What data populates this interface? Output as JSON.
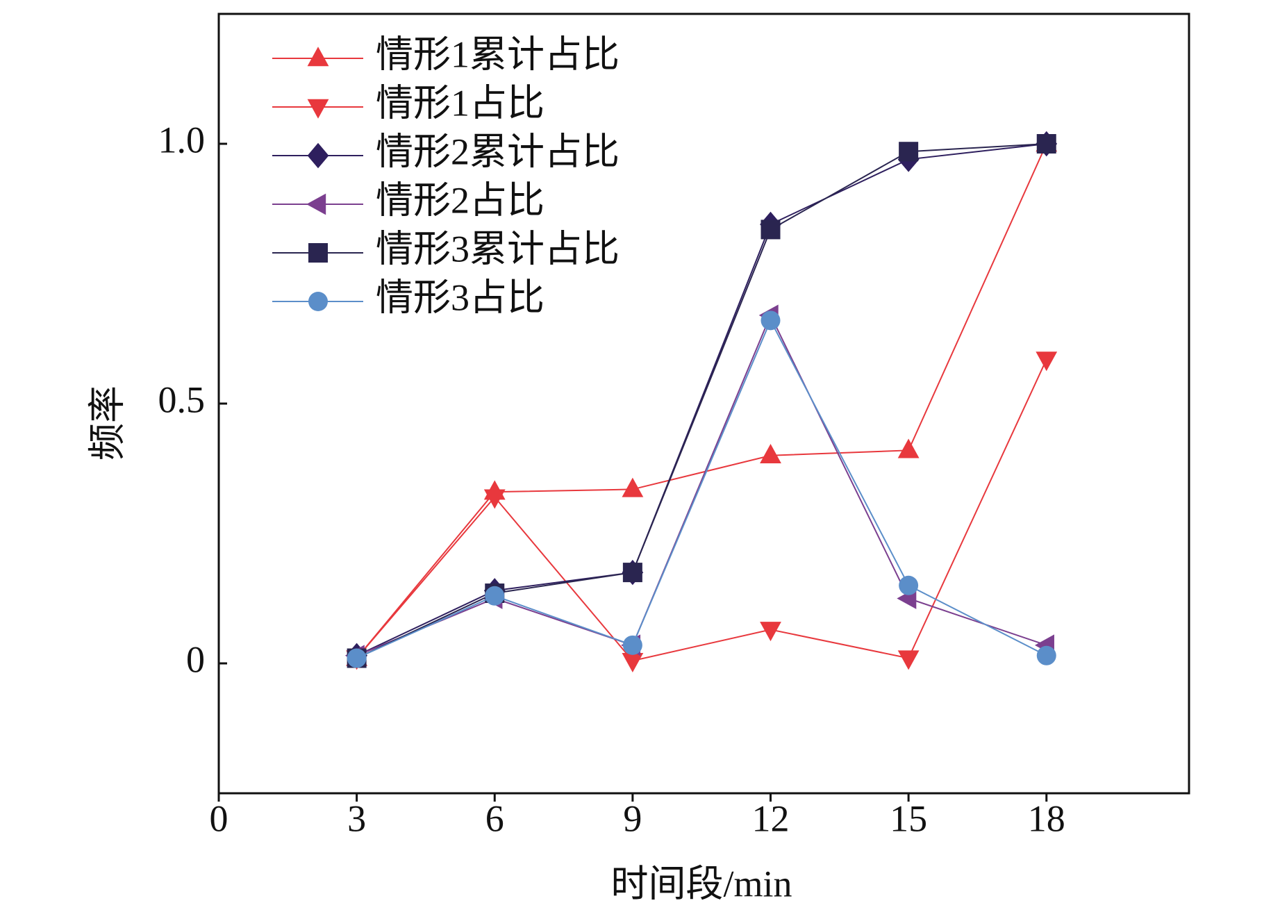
{
  "chart_data": {
    "type": "line",
    "x_label": "时间段/min",
    "y_label": "频率",
    "xlim": [
      0,
      21.1
    ],
    "ylim": [
      -0.25,
      1.25
    ],
    "xticks": [
      0,
      3,
      6,
      9,
      12,
      15,
      18
    ],
    "yticks": [
      0,
      0.5,
      {
        "value": 1,
        "label": "1.0"
      }
    ],
    "legend": "upper left",
    "x": [
      3,
      6,
      9,
      12,
      15,
      18
    ],
    "series": [
      {
        "name": "情形1累计占比",
        "color": "#e8383d",
        "marker": "triangle-up",
        "values": [
          0.01,
          0.33,
          0.335,
          0.4,
          0.41,
          1.0
        ]
      },
      {
        "name": "情形1占比",
        "color": "#e8383d",
        "marker": "triangle-down",
        "values": [
          0.01,
          0.32,
          0.005,
          0.065,
          0.01,
          0.585
        ]
      },
      {
        "name": "情形2累计占比",
        "color": "#2e1f5e",
        "marker": "diamond",
        "values": [
          0.015,
          0.14,
          0.175,
          0.845,
          0.97,
          1.0
        ]
      },
      {
        "name": "情形2占比",
        "color": "#7b3f8f",
        "marker": "triangle-left",
        "values": [
          0.015,
          0.125,
          0.035,
          0.67,
          0.125,
          0.035
        ]
      },
      {
        "name": "情形3累计占比",
        "color": "#2a2550",
        "marker": "square",
        "values": [
          0.01,
          0.135,
          0.175,
          0.835,
          0.985,
          1.0
        ]
      },
      {
        "name": "情形3占比",
        "color": "#5b8ec9",
        "marker": "circle",
        "values": [
          0.01,
          0.13,
          0.035,
          0.66,
          0.15,
          0.015
        ]
      }
    ]
  }
}
